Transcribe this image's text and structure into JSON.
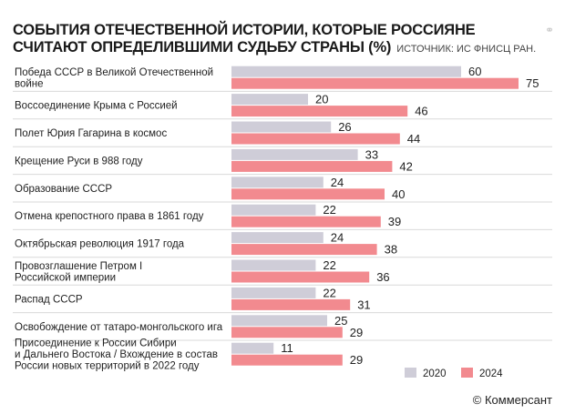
{
  "header": {
    "title": "События отечественной истории, которые россияне считают определившими судьбу страны (%)",
    "source": "Источник: ИС ФНИСЦ РАН.",
    "corner_icon": "share-icon"
  },
  "footer": {
    "credit": "© Коммерсант"
  },
  "colors": {
    "series_2020": "#cfcdd8",
    "series_2024": "#f28a8f",
    "separator": "#d9d9d9"
  },
  "chart_data": {
    "type": "bar",
    "orientation": "horizontal",
    "categories": [
      "Победа СССР в Великой Отечественной войне",
      "Воссоединение Крыма с Россией",
      "Полет Юрия Гагарина в космос",
      "Крещение Руси в 988 году",
      "Образование СССР",
      "Отмена крепостного права в 1861 году",
      "Октябрьская революция 1917 года",
      "Провозглашение Петром I Российской империи",
      "Распад СССР",
      "Освобождение от татаро-монгольского ига",
      "Присоединение к России Сибири и Дальнего Востока / Вхождение в состав России новых территорий в 2022 году"
    ],
    "category_lines": [
      [
        "Победа СССР в Великой Отечественной",
        "войне"
      ],
      [
        "Воссоединение Крыма с Россией"
      ],
      [
        "Полет Юрия Гагарина в космос"
      ],
      [
        "Крещение Руси в 988 году"
      ],
      [
        "Образование СССР"
      ],
      [
        "Отмена крепостного права в 1861 году"
      ],
      [
        "Октябрьская революция 1917 года"
      ],
      [
        "Провозглашение Петром I",
        "Российской империи"
      ],
      [
        "Распад СССР"
      ],
      [
        "Освобождение от татаро-монгольского ига"
      ],
      [
        "Присоединение к России Сибири",
        "и Дальнего Востока / Вхождение в состав",
        "России новых территорий в 2022 году"
      ]
    ],
    "series": [
      {
        "name": "2020",
        "values": [
          60,
          20,
          26,
          33,
          24,
          22,
          24,
          22,
          22,
          25,
          11
        ]
      },
      {
        "name": "2024",
        "values": [
          75,
          46,
          44,
          42,
          40,
          39,
          38,
          36,
          31,
          29,
          29
        ]
      }
    ],
    "xlim": [
      0,
      75
    ],
    "legend": "bottom-right",
    "grid": false,
    "title": "События отечественной истории, которые россияне считают определившими судьбу страны (%)"
  }
}
